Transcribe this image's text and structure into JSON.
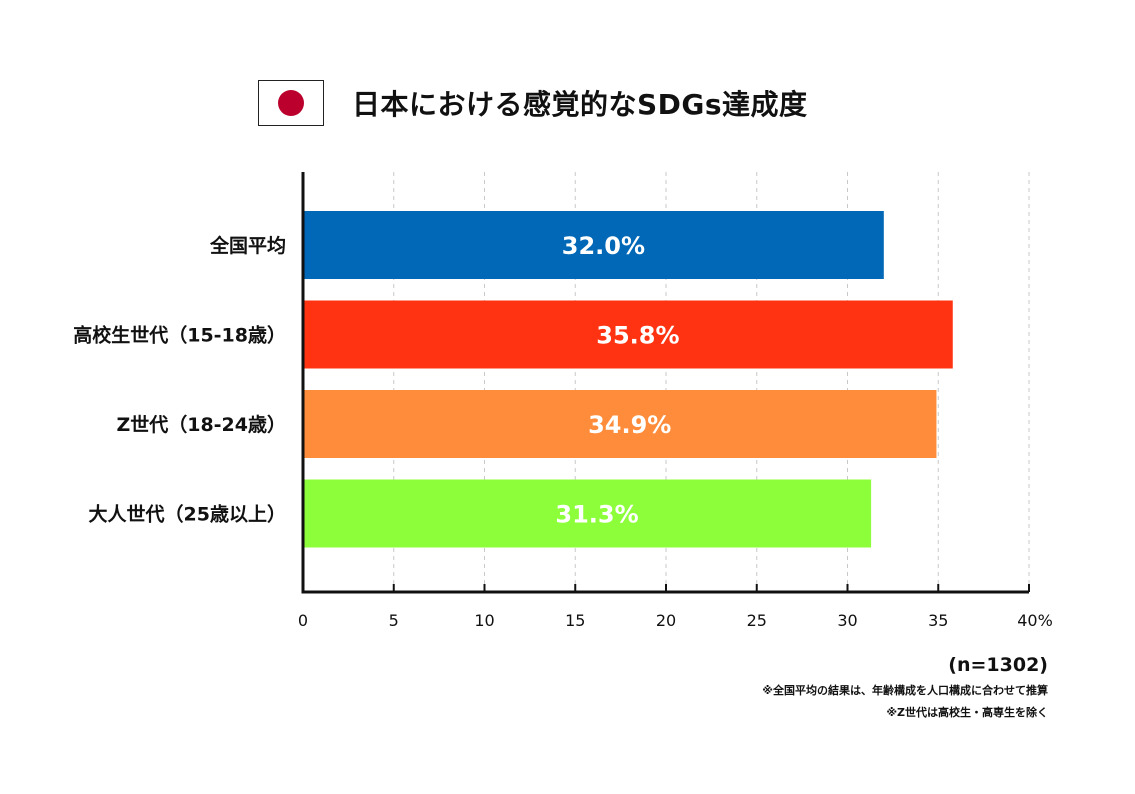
{
  "title": "日本における感覚的なSDGs達成度",
  "flag": {
    "background": "#ffffff",
    "disc_color": "#bc002d"
  },
  "chart_data": {
    "type": "bar",
    "orientation": "horizontal",
    "title": "日本における感覚的なSDGs達成度",
    "categories": [
      "全国平均",
      "高校生世代（15-18歳）",
      "Z世代（18-24歳）",
      "大人世代（25歳以上）"
    ],
    "values": [
      32.0,
      35.8,
      34.9,
      31.3
    ],
    "value_labels": [
      "32.0%",
      "35.8%",
      "34.9%",
      "31.3%"
    ],
    "colors": [
      "#0068b7",
      "#ff3311",
      "#ff8c3b",
      "#8cff3a"
    ],
    "xlim": [
      0,
      40
    ],
    "ticks": [
      0,
      5,
      10,
      15,
      20,
      25,
      30,
      35,
      40
    ],
    "tick_labels": [
      "0",
      "5",
      "10",
      "15",
      "20",
      "25",
      "30",
      "35",
      "40%"
    ],
    "grid": "vertical dashed"
  },
  "footnotes": {
    "sample": "(n=1302)",
    "note1": "※全国平均の結果は、年齢構成を人口構成に合わせて推算",
    "note2": "※Z世代は高校生・高専生を除く"
  }
}
